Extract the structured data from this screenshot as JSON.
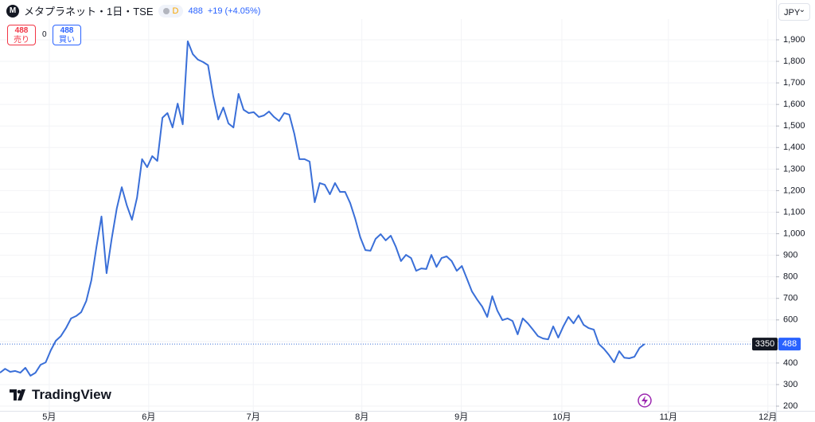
{
  "header": {
    "symbol": "メタプラネット・1日・TSE",
    "logo": "M",
    "badge": "D",
    "price": "488",
    "change": "+19",
    "change_pct": "(+4.05%)"
  },
  "trade": {
    "sell_price": "488",
    "sell_label": "売り",
    "spread": "0",
    "buy_price": "488",
    "buy_label": "買い"
  },
  "currency": "JPY",
  "branding": "TradingView",
  "chart_data": {
    "type": "line",
    "x": [
      0,
      1,
      2,
      3,
      4,
      5,
      6,
      7,
      8,
      9,
      10,
      11,
      12,
      13,
      14,
      15,
      16,
      17,
      18,
      19,
      20,
      21,
      22,
      23,
      24,
      25,
      26,
      27,
      28,
      29,
      30,
      31,
      32,
      33,
      34,
      35,
      36,
      37,
      38,
      39,
      40,
      41,
      42,
      43,
      44,
      45,
      46,
      47,
      48,
      49,
      50,
      51,
      52,
      53,
      54,
      55,
      56,
      57,
      58,
      59,
      60,
      61,
      62,
      63,
      64,
      65,
      66,
      67,
      68,
      69,
      70,
      71,
      72,
      73,
      74,
      75,
      76,
      77,
      78,
      79,
      80,
      81,
      82,
      83,
      84,
      85,
      86,
      87,
      88,
      89,
      90,
      91,
      92,
      93,
      94,
      95,
      96,
      97,
      98,
      99,
      100,
      101,
      102,
      103,
      104,
      105,
      106,
      107,
      108,
      109,
      110,
      111,
      112,
      113,
      114,
      115,
      116,
      117,
      118,
      119,
      120,
      121,
      122,
      123,
      124,
      125,
      126,
      127
    ],
    "series": [
      {
        "color": "#3a6fd8",
        "values": [
          355,
          373,
          359,
          363,
          355,
          378,
          341,
          355,
          392,
          403,
          459,
          503,
          525,
          562,
          607,
          618,
          636,
          688,
          784,
          939,
          1080,
          817,
          976,
          1117,
          1216,
          1131,
          1065,
          1168,
          1346,
          1309,
          1360,
          1338,
          1538,
          1560,
          1493,
          1604,
          1508,
          1893,
          1833,
          1808,
          1797,
          1782,
          1641,
          1530,
          1586,
          1512,
          1493,
          1649,
          1575,
          1560,
          1564,
          1542,
          1549,
          1567,
          1542,
          1523,
          1560,
          1553,
          1464,
          1346,
          1346,
          1335,
          1146,
          1235,
          1227,
          1183,
          1235,
          1194,
          1194,
          1142,
          1068,
          983,
          924,
          921,
          976,
          998,
          969,
          991,
          939,
          873,
          902,
          887,
          828,
          839,
          836,
          902,
          846,
          887,
          895,
          873,
          828,
          850,
          791,
          732,
          695,
          662,
          614,
          710,
          643,
          599,
          607,
          595,
          533,
          607,
          584,
          555,
          525,
          514,
          510,
          570,
          518,
          570,
          614,
          584,
          621,
          577,
          562,
          555,
          488,
          466,
          437,
          403,
          455,
          425,
          422,
          429,
          470,
          488
        ]
      }
    ],
    "last_price": 488,
    "last_price_label": "488",
    "symbol_code": "3350",
    "xlim": [
      0,
      152.9
    ],
    "xticks": [
      {
        "value": 9.7,
        "label": "5月"
      },
      {
        "value": 29.3,
        "label": "6月"
      },
      {
        "value": 49.9,
        "label": "7月"
      },
      {
        "value": 71.3,
        "label": "8月"
      },
      {
        "value": 90.9,
        "label": "9月"
      },
      {
        "value": 110.7,
        "label": "10月"
      },
      {
        "value": 131.7,
        "label": "11月"
      },
      {
        "value": 151.3,
        "label": "12月"
      }
    ],
    "ylim": [
      178,
      1996
    ],
    "yticks": [
      200,
      300,
      400,
      500,
      600,
      700,
      800,
      900,
      {
        "value": 1000,
        "label": "1,000"
      },
      {
        "value": 1100,
        "label": "1,100"
      },
      {
        "value": 1200,
        "label": "1,200"
      },
      {
        "value": 1300,
        "label": "1,300"
      },
      {
        "value": 1400,
        "label": "1,400"
      },
      {
        "value": 1500,
        "label": "1,500"
      },
      {
        "value": 1600,
        "label": "1,600"
      },
      {
        "value": 1700,
        "label": "1,700"
      },
      {
        "value": 1800,
        "label": "1,800"
      },
      {
        "value": 1900,
        "label": "1,900"
      }
    ],
    "grid": true
  }
}
